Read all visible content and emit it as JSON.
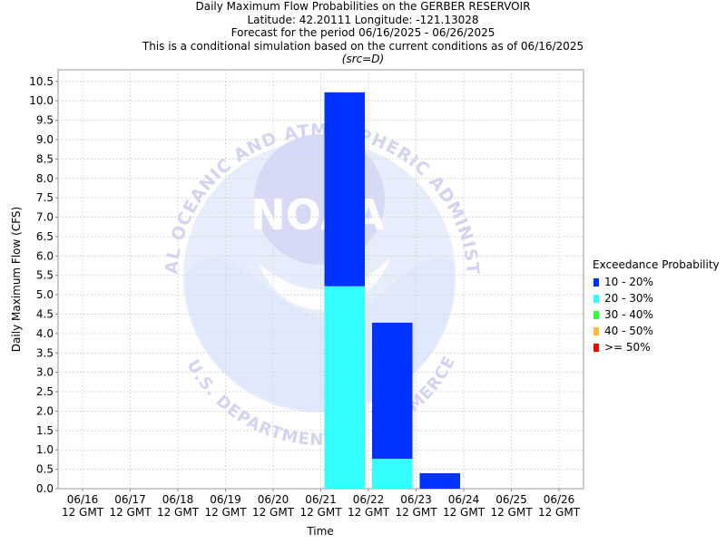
{
  "chart_data": {
    "type": "bar",
    "title_lines": [
      "Daily Maximum Flow Probabilities on the GERBER RESERVOIR",
      "Latitude: 42.20111 Longitude: -121.13028",
      "Forecast for the period 06/16/2025 - 06/26/2025",
      "This is a conditional simulation based on the current conditions as of 06/16/2025"
    ],
    "subtitle": "(src=D)",
    "xlabel": "Time",
    "ylabel": "Daily Maximum Flow (CFS)",
    "ylim": [
      0,
      10.8
    ],
    "yticks": [
      "0.0",
      "0.5",
      "1.0",
      "1.5",
      "2.0",
      "2.5",
      "3.0",
      "3.5",
      "4.0",
      "4.5",
      "5.0",
      "5.5",
      "6.0",
      "6.5",
      "7.0",
      "7.5",
      "8.0",
      "8.5",
      "9.0",
      "9.5",
      "10.0",
      "10.5"
    ],
    "x_ticks": [
      {
        "date": "06/16",
        "time": "12 GMT"
      },
      {
        "date": "06/17",
        "time": "12 GMT"
      },
      {
        "date": "06/18",
        "time": "12 GMT"
      },
      {
        "date": "06/19",
        "time": "12 GMT"
      },
      {
        "date": "06/20",
        "time": "12 GMT"
      },
      {
        "date": "06/21",
        "time": "12 GMT"
      },
      {
        "date": "06/22",
        "time": "12 GMT"
      },
      {
        "date": "06/23",
        "time": "12 GMT"
      },
      {
        "date": "06/24",
        "time": "12 GMT"
      },
      {
        "date": "06/25",
        "time": "12 GMT"
      },
      {
        "date": "06/26",
        "time": "12 GMT"
      }
    ],
    "bars": [
      {
        "start": "06/21 12 GMT",
        "end": "06/22 12 GMT",
        "segments": [
          {
            "series": "20 - 30%",
            "from": 0,
            "to": 5.22
          },
          {
            "series": "10 - 20%",
            "from": 5.22,
            "to": 10.22
          }
        ]
      },
      {
        "start": "06/22 12 GMT",
        "end": "06/23 12 GMT",
        "segments": [
          {
            "series": "20 - 30%",
            "from": 0,
            "to": 0.77
          },
          {
            "series": "10 - 20%",
            "from": 0.77,
            "to": 4.28
          }
        ]
      },
      {
        "start": "06/23 12 GMT",
        "end": "06/24 12 GMT",
        "segments": [
          {
            "series": "10 - 20%",
            "from": 0,
            "to": 0.4
          }
        ]
      }
    ],
    "legend": {
      "title": "Exceedance Probability",
      "position": "right",
      "items": [
        {
          "label": "10 - 20%",
          "color": "#0033ff"
        },
        {
          "label": "20 - 30%",
          "color": "#33ffff"
        },
        {
          "label": "30 - 40%",
          "color": "#33ff33"
        },
        {
          "label": "40 - 50%",
          "color": "#ffbb33"
        },
        {
          "label": ">= 50%",
          "color": "#ff0000"
        }
      ]
    },
    "grid": true,
    "watermark": {
      "logo_text": "NOAA",
      "ring_text": "NATIONAL OCEANIC AND ATMOSPHERIC ADMINISTRATION",
      "lower_text": "U.S. DEPARTMENT OF COMMERCE"
    }
  }
}
